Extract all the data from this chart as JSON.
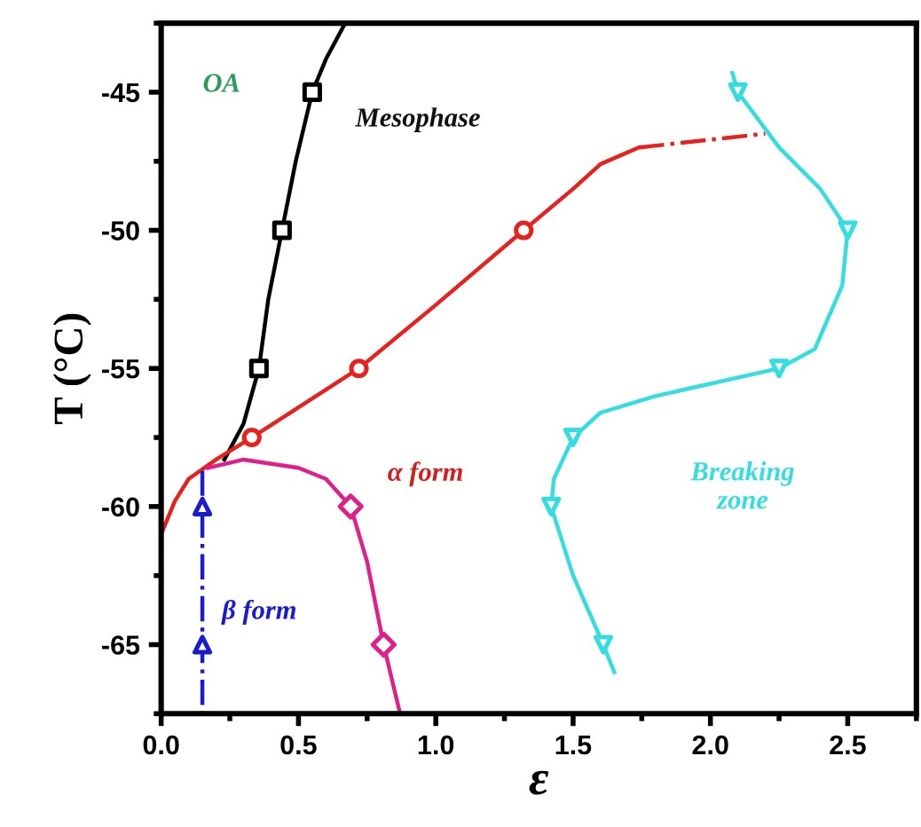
{
  "chart_data": {
    "type": "line",
    "xlabel": "ε",
    "ylabel": "T (°C)",
    "xlim": [
      0,
      2.75
    ],
    "ylim": [
      -67.5,
      -42.5
    ],
    "xticks": [
      {
        "value": 0,
        "label": "0.0"
      },
      0.5,
      {
        "value": 1,
        "label": "1.0"
      },
      1.5,
      {
        "value": 2,
        "label": "2.0"
      },
      2.5
    ],
    "yticks": [
      -65,
      -60,
      -55,
      -50,
      -45
    ],
    "grid": false,
    "series": [
      {
        "type": "line",
        "marker": "none",
        "line_style": "solid",
        "color": "#000000",
        "x": [
          0.23,
          0.3,
          0.356,
          0.39,
          0.44,
          0.49,
          0.55,
          0.6,
          0.67
        ],
        "values": [
          -58.3,
          -57,
          -55,
          -52.5,
          -50,
          -47.5,
          -45,
          -43.8,
          -42.5
        ]
      },
      {
        "type": "scatter",
        "marker": "square",
        "color": "#000000",
        "x": [
          0.356,
          0.44,
          0.55
        ],
        "values": [
          -55,
          -50,
          -45
        ]
      },
      {
        "type": "line",
        "marker": "none",
        "line_style": "solid",
        "color": "#e8201e",
        "x": [
          0,
          0.05,
          0.1,
          0.2,
          0.33,
          0.72,
          1.0,
          1.32,
          1.5,
          1.6,
          1.74
        ],
        "values": [
          -61,
          -59.8,
          -59,
          -58.3,
          -57.5,
          -55,
          -52.7,
          -50,
          -48.5,
          -47.6,
          -47
        ]
      },
      {
        "type": "line",
        "marker": "none",
        "line_style": "dashdot",
        "color": "#e8201e",
        "x": [
          1.74,
          2.2
        ],
        "values": [
          -47,
          -46.5
        ]
      },
      {
        "type": "scatter",
        "marker": "circle",
        "color": "#e8201e",
        "x": [
          0.33,
          0.72,
          1.32
        ],
        "values": [
          -57.5,
          -55,
          -50
        ]
      },
      {
        "type": "line",
        "marker": "none",
        "line_style": "solid",
        "color": "#e0208a",
        "x": [
          0.17,
          0.3,
          0.5,
          0.6,
          0.69,
          0.75,
          0.81,
          0.87
        ],
        "values": [
          -58.6,
          -58.3,
          -58.6,
          -59,
          -60,
          -62,
          -65,
          -67.5
        ]
      },
      {
        "type": "scatter",
        "marker": "diamond",
        "color": "#e0208a",
        "x": [
          0.69,
          0.81
        ],
        "values": [
          -60,
          -65
        ]
      },
      {
        "type": "line",
        "marker": "none",
        "line_style": "dashdot",
        "color": "#1a1ad0",
        "x": [
          0.15,
          0.15
        ],
        "values": [
          -58.7,
          -67.5
        ]
      },
      {
        "type": "scatter",
        "marker": "triangle",
        "color": "#1a1ad0",
        "x": [
          0.15,
          0.15
        ],
        "values": [
          -60,
          -65
        ]
      },
      {
        "type": "line",
        "marker": "none",
        "line_style": "solid",
        "color": "#33dde0",
        "x": [
          2.08,
          2.1,
          2.25,
          2.4,
          2.5,
          2.48,
          2.38,
          2.25,
          1.8,
          1.6,
          1.5,
          1.43,
          1.42,
          1.5,
          1.61,
          1.65
        ],
        "values": [
          -44.3,
          -45,
          -47,
          -48.5,
          -50,
          -52,
          -54.3,
          -55,
          -56,
          -56.6,
          -57.5,
          -59,
          -60,
          -62.5,
          -65,
          -66
        ]
      },
      {
        "type": "scatter",
        "marker": "triangle_down",
        "color": "#33dde0",
        "x": [
          2.1,
          2.5,
          2.25,
          1.5,
          1.42,
          1.61
        ],
        "values": [
          -45,
          -50,
          -55,
          -57.5,
          -60,
          -65
        ]
      }
    ],
    "annotations": [
      "OA",
      "Mesophase",
      "α form",
      "β form",
      "Breaking\nzone"
    ]
  }
}
